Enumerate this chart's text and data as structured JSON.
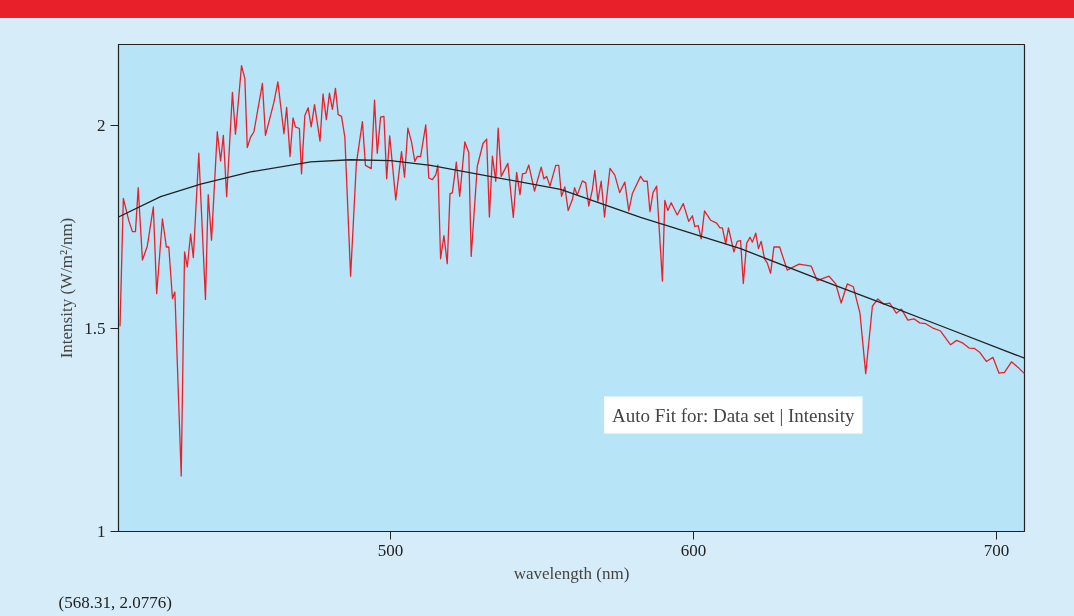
{
  "chart_data": {
    "type": "line",
    "xlabel": "wavelength (nm)",
    "ylabel": "Intensity (W/m²/nm)",
    "xlim": [
      410.2,
      709.2
    ],
    "ylim": [
      1.0,
      2.2
    ],
    "xticks": [
      500,
      600,
      700
    ],
    "yticks": [
      1,
      1.5,
      2
    ],
    "grid": false,
    "line_style": "solid",
    "marker": "none",
    "annotations": [
      "Auto Fit for: Data set | Intensity",
      "(568.31, 2.0776)"
    ],
    "series": [
      {
        "color": "#e8202a",
        "x": [
          410.7,
          411.8,
          413.6,
          414.8,
          415.8,
          416.7,
          418.1,
          419.7,
          421.7,
          422.8,
          424.7,
          426.0,
          426.8,
          428.0,
          428.8,
          430.9,
          432.0,
          432.9,
          434.0,
          434.9,
          436.7,
          438.9,
          439.8,
          440.9,
          442.8,
          443.9,
          444.8,
          445.9,
          447.8,
          448.8,
          450.8,
          451.9,
          452.7,
          453.8,
          454.9,
          457.7,
          458.7,
          461.5,
          462.8,
          464.8,
          465.7,
          466.8,
          467.8,
          468.6,
          469.9,
          470.6,
          471.7,
          472.8,
          473.8,
          474.9,
          476.7,
          477.7,
          478.8,
          479.8,
          480.8,
          481.8,
          482.7,
          483.8,
          484.9,
          486.8,
          488.7,
          490.7,
          491.7,
          493.6,
          494.7,
          495.6,
          496.7,
          497.8,
          498.7,
          499.7,
          501.7,
          503.6,
          504.6,
          505.7,
          506.9,
          508.0,
          508.8,
          509.9,
          511.6,
          512.6,
          513.8,
          514.9,
          515.6,
          516.5,
          517.6,
          518.7,
          519.6,
          520.4,
          521.7,
          522.8,
          524.5,
          525.8,
          526.6,
          528.6,
          530.5,
          531.7,
          532.6,
          533.6,
          534.7,
          535.5,
          536.5,
          538.7,
          540.5,
          541.6,
          542.7,
          543.5,
          544.6,
          545.6,
          547.5,
          549.7,
          550.6,
          551.5,
          552.6,
          554.5,
          555.5,
          556.4,
          557.5,
          558.6,
          560.0,
          560.7,
          561.6,
          563.3,
          564.4,
          565.4,
          566.6,
          567.4,
          568.4,
          569.5,
          570.6,
          572.4,
          574.0,
          575.6,
          577.3,
          578.6,
          579.8,
          582.5,
          583.6,
          584.7,
          585.6,
          586.6,
          587.8,
          589.7,
          590.5,
          591.5,
          592.6,
          594.6,
          596.6,
          598.4,
          599.6,
          600.4,
          601.5,
          602.5,
          603.6,
          605.6,
          607.6,
          608.7,
          609.5,
          610.6,
          611.5,
          613.3,
          614.4,
          615.5,
          616.4,
          617.5,
          618.6,
          619.4,
          620.5,
          621.4,
          622.3,
          623.4,
          624.3,
          625.4,
          626.5,
          628.4,
          630.9,
          634.8,
          638.8,
          640.8,
          644.7,
          646.9,
          648.7,
          650.7,
          652.7,
          654.9,
          656.8,
          659.0,
          660.8,
          662.8,
          664.7,
          666.9,
          668.6,
          670.7,
          672.7,
          674.6,
          676.6,
          678.8,
          681.5,
          684.8,
          686.8,
          688.7,
          690.9,
          692.7,
          694.5,
          696.6,
          698.8,
          700.8,
          702.6,
          704.9,
          707.4,
          709.2
        ],
        "values": [
          1.506,
          1.821,
          1.766,
          1.739,
          1.739,
          1.847,
          1.669,
          1.703,
          1.8,
          1.586,
          1.77,
          1.701,
          1.701,
          1.574,
          1.59,
          1.137,
          1.689,
          1.652,
          1.733,
          1.675,
          1.932,
          1.572,
          1.83,
          1.718,
          1.985,
          1.913,
          1.976,
          1.825,
          2.082,
          1.979,
          2.148,
          2.116,
          1.946,
          1.972,
          1.985,
          2.104,
          1.976,
          2.058,
          2.108,
          1.98,
          2.045,
          1.924,
          2.019,
          1.997,
          1.993,
          1.881,
          2.025,
          2.044,
          1.997,
          2.052,
          1.962,
          2.078,
          2.015,
          2.08,
          2.04,
          2.092,
          2.027,
          2.023,
          1.972,
          1.629,
          1.907,
          2.01,
          1.902,
          1.894,
          2.063,
          1.932,
          2.021,
          2.023,
          1.869,
          1.975,
          1.817,
          1.936,
          1.873,
          1.994,
          1.96,
          1.912,
          1.924,
          1.924,
          2.002,
          1.871,
          1.867,
          1.879,
          1.903,
          1.672,
          1.729,
          1.66,
          1.832,
          1.835,
          1.91,
          1.826,
          1.96,
          1.934,
          1.678,
          1.9,
          1.956,
          1.967,
          1.775,
          1.925,
          1.863,
          1.994,
          1.875,
          1.907,
          1.774,
          1.885,
          1.83,
          1.881,
          1.883,
          1.903,
          1.839,
          1.898,
          1.869,
          1.875,
          1.851,
          1.902,
          1.902,
          1.826,
          1.849,
          1.791,
          1.818,
          1.847,
          1.829,
          1.864,
          1.859,
          1.802,
          1.843,
          1.89,
          1.814,
          1.863,
          1.775,
          1.895,
          1.878,
          1.835,
          1.861,
          1.79,
          1.833,
          1.875,
          1.863,
          1.863,
          1.788,
          1.835,
          1.851,
          1.617,
          1.816,
          1.791,
          1.81,
          1.78,
          1.808,
          1.764,
          1.778,
          1.751,
          1.754,
          1.721,
          1.79,
          1.767,
          1.76,
          1.748,
          1.748,
          1.709,
          1.748,
          1.689,
          1.715,
          1.717,
          1.611,
          1.71,
          1.725,
          1.713,
          1.735,
          1.697,
          1.715,
          1.672,
          1.662,
          1.636,
          1.701,
          1.701,
          1.644,
          1.659,
          1.654,
          1.618,
          1.629,
          1.61,
          1.563,
          1.61,
          1.603,
          1.538,
          1.389,
          1.555,
          1.573,
          1.56,
          1.563,
          1.538,
          1.548,
          1.521,
          1.524,
          1.514,
          1.512,
          1.502,
          1.494,
          1.46,
          1.471,
          1.465,
          1.452,
          1.451,
          1.441,
          1.419,
          1.429,
          1.39,
          1.392,
          1.418,
          1.402,
          1.389
        ]
      },
      {
        "color": "#222222",
        "x": [
          410.2,
          424.1,
          437.3,
          453.8,
          473.6,
          486.8,
          500.0,
          513.2,
          556.1,
          582.5,
          615.5,
          641.9,
          661.7,
          681.5,
          709.2
        ],
        "values": [
          1.775,
          1.825,
          1.856,
          1.886,
          1.911,
          1.916,
          1.914,
          1.902,
          1.843,
          1.774,
          1.697,
          1.62,
          1.564,
          1.507,
          1.427
        ]
      }
    ]
  }
}
